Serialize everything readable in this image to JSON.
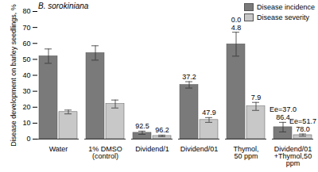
{
  "chart_data": {
    "type": "bar",
    "title": "B. sorokiniana",
    "y_label": "Disease development on barley seedlings, %",
    "categories": [
      "Water",
      "1% DMSO\n(control)",
      "Dividend/1",
      "Dividend/01",
      "Thymol,\n50 ppm",
      "Dividend/01\n+Thymol,50\nppm"
    ],
    "series": [
      {
        "name": "Disease incidence",
        "color": "#7a7a7a",
        "values": [
          52,
          54,
          4,
          34,
          59.5,
          7.5
        ],
        "errors": [
          4.5,
          4.5,
          1,
          2,
          7.5,
          3
        ]
      },
      {
        "name": "Disease severity",
        "color": "#c8c8c8",
        "values": [
          17,
          22,
          2,
          12,
          20.5,
          2.5
        ],
        "errors": [
          1.2,
          2.5,
          0.5,
          1.5,
          2.5,
          0.7
        ]
      }
    ],
    "annotations": [
      {
        "category": "Dividend/1",
        "series": "Disease incidence",
        "texts": [
          "92.5"
        ]
      },
      {
        "category": "Dividend/1",
        "series": "Disease severity",
        "texts": [
          "96.2"
        ]
      },
      {
        "category": "Dividend/01",
        "series": "Disease incidence",
        "texts": [
          "37.2"
        ]
      },
      {
        "category": "Dividend/01",
        "series": "Disease severity",
        "texts": [
          "47.9"
        ]
      },
      {
        "category": "Thymol,\n50 ppm",
        "series": "Disease incidence",
        "texts": [
          "0.0",
          "4.8"
        ]
      },
      {
        "category": "Thymol,\n50 ppm",
        "series": "Disease severity",
        "texts": [
          "7.9"
        ]
      },
      {
        "category": "Dividend/01\n+Thymol,50\nppm",
        "series": "Disease incidence",
        "texts": [
          "Ee=37.0",
          "86.4"
        ]
      },
      {
        "category": "Dividend/01\n+Thymol,50\nppm",
        "series": "Disease severity",
        "texts": [
          "Ee=51.7",
          "78.0"
        ]
      }
    ],
    "ylim": [
      0,
      80
    ],
    "yticks": [
      0,
      10,
      20,
      30,
      40,
      50,
      60,
      70,
      80
    ],
    "grid": false,
    "legend": "top-right"
  }
}
